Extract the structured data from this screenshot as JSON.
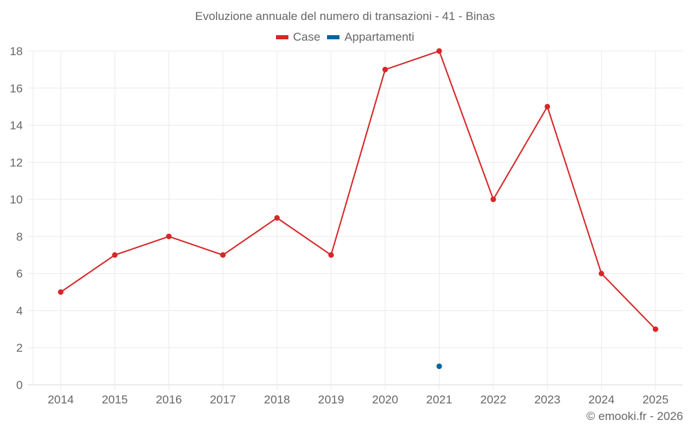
{
  "title": "Evoluzione annuale del numero di transazioni - 41 - Binas",
  "legend": [
    {
      "label": "Case",
      "color": "#d62728"
    },
    {
      "label": "Appartamenti",
      "color": "#00649e"
    }
  ],
  "footer": "© emooki.fr - 2026",
  "colors": {
    "grid": "#ebebeb",
    "axis": "#d9d9d9",
    "text": "#666666"
  },
  "chart_data": {
    "type": "line",
    "title": "Evoluzione annuale del numero di transazioni - 41 - Binas",
    "xlabel": "",
    "ylabel": "",
    "categories": [
      "2014",
      "2015",
      "2016",
      "2017",
      "2018",
      "2019",
      "2020",
      "2021",
      "2022",
      "2023",
      "2024",
      "2025"
    ],
    "series": [
      {
        "name": "Case",
        "color": "#d62728",
        "values": [
          5,
          7,
          8,
          7,
          9,
          7,
          17,
          18,
          10,
          15,
          6,
          3
        ]
      },
      {
        "name": "Appartamenti",
        "color": "#00649e",
        "values": [
          null,
          null,
          null,
          null,
          null,
          null,
          null,
          1,
          null,
          null,
          null,
          null
        ]
      }
    ],
    "yticks": [
      0,
      2,
      4,
      6,
      8,
      10,
      12,
      14,
      16,
      18
    ],
    "ylim": [
      0,
      18
    ],
    "grid": true,
    "legend_position": "top"
  }
}
